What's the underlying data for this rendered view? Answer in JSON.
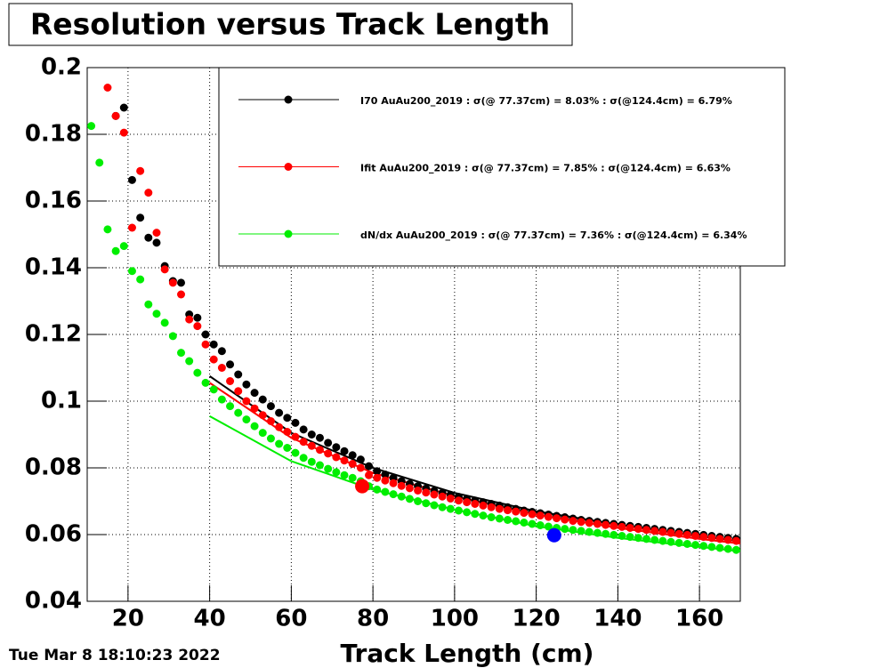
{
  "chart_data": {
    "type": "scatter",
    "title": "Resolution versus Track Length",
    "x_label": "Track Length (cm)",
    "timestamp": "Tue Mar  8 18:10:23 2022",
    "xlim": [
      10,
      170
    ],
    "ylim": [
      0.04,
      0.2
    ],
    "xticks": [
      20,
      40,
      60,
      80,
      100,
      120,
      140,
      160
    ],
    "yticks": [
      0.04,
      0.06,
      0.08,
      0.1,
      0.12,
      0.14,
      0.16,
      0.18,
      0.2
    ],
    "grid": true,
    "series": [
      {
        "name": "I70 AuAu200_2019 : σ(@ 77.37cm) =  8.03% : σ(@124.4cm) =  6.79%",
        "color": "#000000",
        "x": [
          17,
          19,
          21,
          23,
          25,
          27,
          29,
          31,
          33,
          35,
          37,
          39,
          41,
          43,
          45,
          47,
          49,
          51,
          53,
          55,
          57,
          59,
          61,
          63,
          65,
          67,
          69,
          71,
          73,
          75,
          77,
          79,
          81,
          83,
          85,
          87,
          89,
          91,
          93,
          95,
          97,
          99,
          101,
          103,
          105,
          107,
          109,
          111,
          113,
          115,
          117,
          119,
          121,
          123,
          125,
          127,
          129,
          131,
          133,
          135,
          137,
          139,
          141,
          143,
          145,
          147,
          149,
          151,
          153,
          155,
          157,
          159,
          161,
          163,
          165,
          167,
          169
        ],
        "values": [
          0.1855,
          0.188,
          0.1663,
          0.155,
          0.149,
          0.1475,
          0.1405,
          0.136,
          0.1355,
          0.126,
          0.125,
          0.12,
          0.117,
          0.115,
          0.111,
          0.108,
          0.105,
          0.1025,
          0.1005,
          0.0985,
          0.0965,
          0.095,
          0.0935,
          0.0915,
          0.09,
          0.089,
          0.0875,
          0.0862,
          0.085,
          0.0838,
          0.0825,
          0.0805,
          0.079,
          0.078,
          0.077,
          0.076,
          0.0752,
          0.0745,
          0.0738,
          0.0731,
          0.0725,
          0.0719,
          0.0713,
          0.0707,
          0.0702,
          0.0697,
          0.0692,
          0.0687,
          0.0682,
          0.0677,
          0.0672,
          0.0668,
          0.0664,
          0.066,
          0.0656,
          0.0652,
          0.0648,
          0.0644,
          0.0641,
          0.0638,
          0.0635,
          0.0632,
          0.0629,
          0.0626,
          0.0623,
          0.062,
          0.0617,
          0.0614,
          0.0611,
          0.0608,
          0.0605,
          0.0602,
          0.0599,
          0.0596,
          0.0593,
          0.059,
          0.0587
        ]
      },
      {
        "name": "Ifit AuAu200_2019 : σ(@ 77.37cm) =  7.85% : σ(@124.4cm) =  6.63%",
        "color": "#ff0000",
        "x": [
          15,
          17,
          19,
          21,
          23,
          25,
          27,
          29,
          31,
          33,
          35,
          37,
          39,
          41,
          43,
          45,
          47,
          49,
          51,
          53,
          55,
          57,
          59,
          61,
          63,
          65,
          67,
          69,
          71,
          73,
          75,
          77,
          79,
          81,
          83,
          85,
          87,
          89,
          91,
          93,
          95,
          97,
          99,
          101,
          103,
          105,
          107,
          109,
          111,
          113,
          115,
          117,
          119,
          121,
          123,
          125,
          127,
          129,
          131,
          133,
          135,
          137,
          139,
          141,
          143,
          145,
          147,
          149,
          151,
          153,
          155,
          157,
          159,
          161,
          163,
          165,
          167,
          169
        ],
        "values": [
          0.194,
          0.1855,
          0.1805,
          0.152,
          0.169,
          0.1625,
          0.1505,
          0.1395,
          0.1355,
          0.132,
          0.1245,
          0.1225,
          0.117,
          0.1125,
          0.11,
          0.106,
          0.103,
          0.1,
          0.0978,
          0.0958,
          0.094,
          0.0922,
          0.0908,
          0.0893,
          0.0878,
          0.0866,
          0.0854,
          0.0843,
          0.0832,
          0.0822,
          0.0812,
          0.08,
          0.0778,
          0.077,
          0.0762,
          0.0754,
          0.0746,
          0.0739,
          0.0732,
          0.0726,
          0.072,
          0.0714,
          0.0708,
          0.0702,
          0.0697,
          0.0692,
          0.0687,
          0.0682,
          0.0677,
          0.0673,
          0.0669,
          0.0665,
          0.0661,
          0.0657,
          0.0653,
          0.0649,
          0.0645,
          0.0641,
          0.0638,
          0.0635,
          0.0632,
          0.0629,
          0.0626,
          0.0623,
          0.062,
          0.0617,
          0.0614,
          0.0611,
          0.0608,
          0.0605,
          0.0602,
          0.0599,
          0.0596,
          0.0593,
          0.059,
          0.0587,
          0.0584,
          0.0581
        ]
      },
      {
        "name": "dN/dx AuAu200_2019 : σ(@ 77.37cm) =  7.36% : σ(@124.4cm) =  6.34%",
        "color": "#00ee00",
        "x": [
          11,
          13,
          15,
          17,
          19,
          21,
          23,
          25,
          27,
          29,
          31,
          33,
          35,
          37,
          39,
          41,
          43,
          45,
          47,
          49,
          51,
          53,
          55,
          57,
          59,
          61,
          63,
          65,
          67,
          69,
          71,
          73,
          75,
          77,
          79,
          81,
          83,
          85,
          87,
          89,
          91,
          93,
          95,
          97,
          99,
          101,
          103,
          105,
          107,
          109,
          111,
          113,
          115,
          117,
          119,
          121,
          123,
          125,
          127,
          129,
          131,
          133,
          135,
          137,
          139,
          141,
          143,
          145,
          147,
          149,
          151,
          153,
          155,
          157,
          159,
          161,
          163,
          165,
          167,
          169
        ],
        "values": [
          0.1825,
          0.1715,
          0.1515,
          0.145,
          0.1465,
          0.139,
          0.1365,
          0.129,
          0.1262,
          0.1235,
          0.1195,
          0.1145,
          0.112,
          0.1085,
          0.1055,
          0.1035,
          0.1005,
          0.0985,
          0.0965,
          0.0945,
          0.0925,
          0.0905,
          0.0888,
          0.0872,
          0.086,
          0.0845,
          0.083,
          0.0818,
          0.0808,
          0.0797,
          0.0787,
          0.0778,
          0.077,
          0.076,
          0.0745,
          0.0735,
          0.0728,
          0.0721,
          0.0714,
          0.0707,
          0.07,
          0.0694,
          0.0688,
          0.0682,
          0.0677,
          0.0672,
          0.0667,
          0.0662,
          0.0657,
          0.0652,
          0.0648,
          0.0644,
          0.064,
          0.0636,
          0.0632,
          0.0628,
          0.0624,
          0.062,
          0.0617,
          0.0614,
          0.0611,
          0.0608,
          0.0605,
          0.0602,
          0.0599,
          0.0596,
          0.0593,
          0.059,
          0.0587,
          0.0584,
          0.0581,
          0.0578,
          0.0575,
          0.0572,
          0.0569,
          0.0566,
          0.0563,
          0.056,
          0.0557,
          0.0554
        ]
      }
    ],
    "fits": [
      {
        "color": "#000000",
        "x": [
          40,
          60,
          80,
          100,
          120,
          140,
          160,
          170
        ],
        "values": [
          0.1075,
          0.0905,
          0.08,
          0.0725,
          0.067,
          0.063,
          0.0595,
          0.058
        ]
      },
      {
        "color": "#ff0000",
        "x": [
          40,
          60,
          80,
          100,
          120,
          140,
          160,
          170
        ],
        "values": [
          0.1055,
          0.089,
          0.0785,
          0.0715,
          0.066,
          0.062,
          0.0587,
          0.0573
        ]
      },
      {
        "color": "#00ee00",
        "x": [
          40,
          60,
          80,
          100,
          120,
          140,
          160,
          170
        ],
        "values": [
          0.0955,
          0.082,
          0.0735,
          0.0675,
          0.0625,
          0.059,
          0.0563,
          0.055
        ]
      }
    ],
    "markers": [
      {
        "color": "#ff0000",
        "x": [
          77.37
        ],
        "values": [
          0.0745
        ]
      },
      {
        "color": "#0000ff",
        "x": [
          124.4
        ],
        "values": [
          0.0598
        ]
      }
    ]
  }
}
